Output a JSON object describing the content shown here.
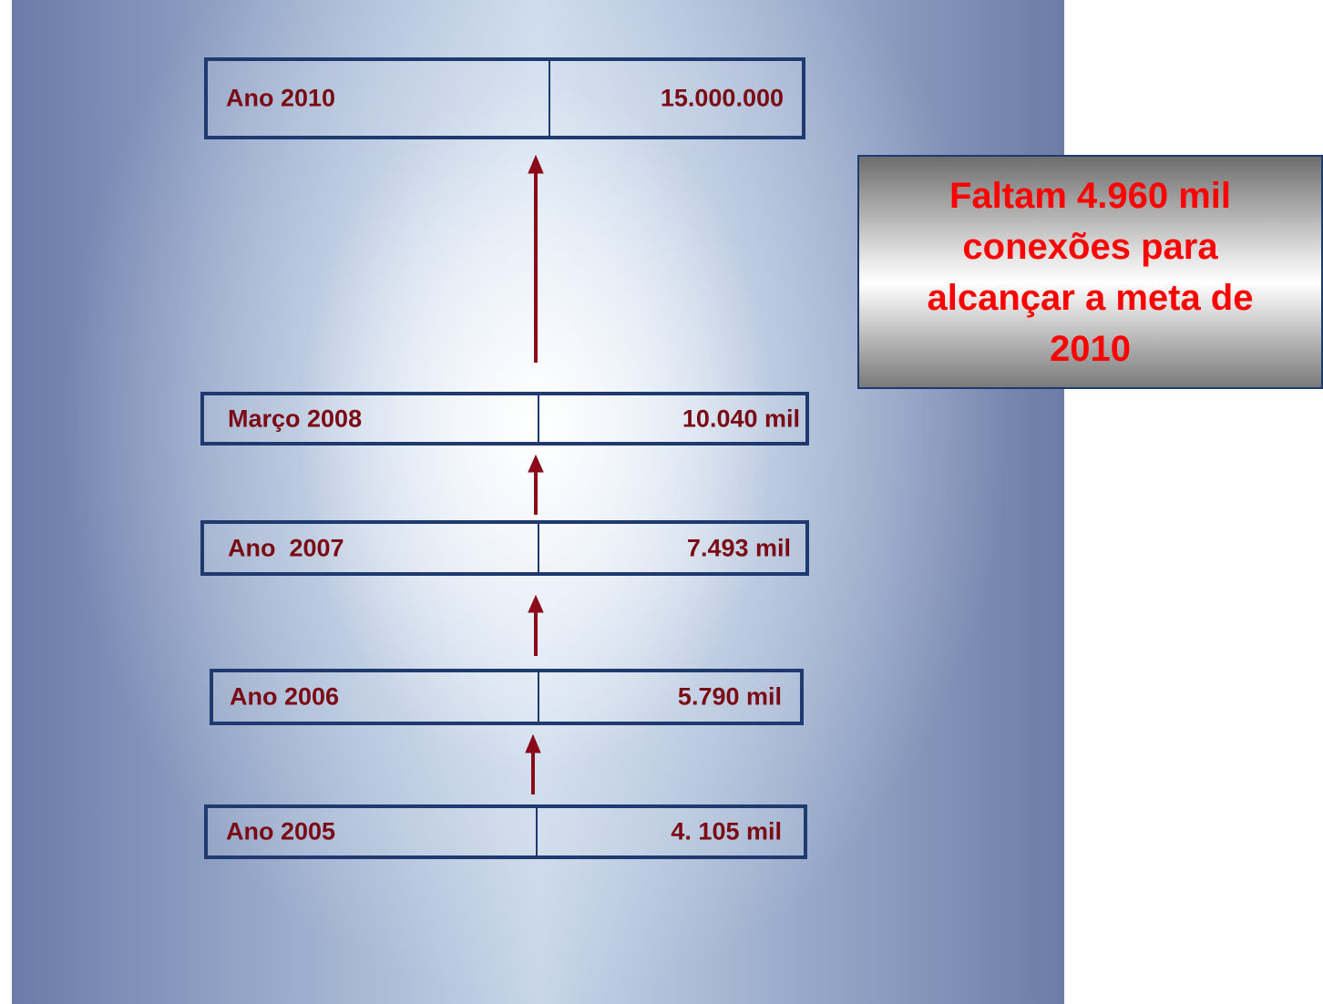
{
  "rows": [
    {
      "label": "Ano 2010",
      "value": "15.000.000"
    },
    {
      "label": "Março 2008",
      "value": "10.040 mil"
    },
    {
      "label": "Ano  2007",
      "value": "7.493 mil"
    },
    {
      "label": "Ano 2006",
      "value": "5.790 mil"
    },
    {
      "label": "Ano 2005",
      "value": "4. 105 mil"
    }
  ],
  "callout": {
    "lines": [
      "Faltam 4.960 mil",
      "conexões para",
      "alcançar a meta de",
      "2010"
    ]
  }
}
